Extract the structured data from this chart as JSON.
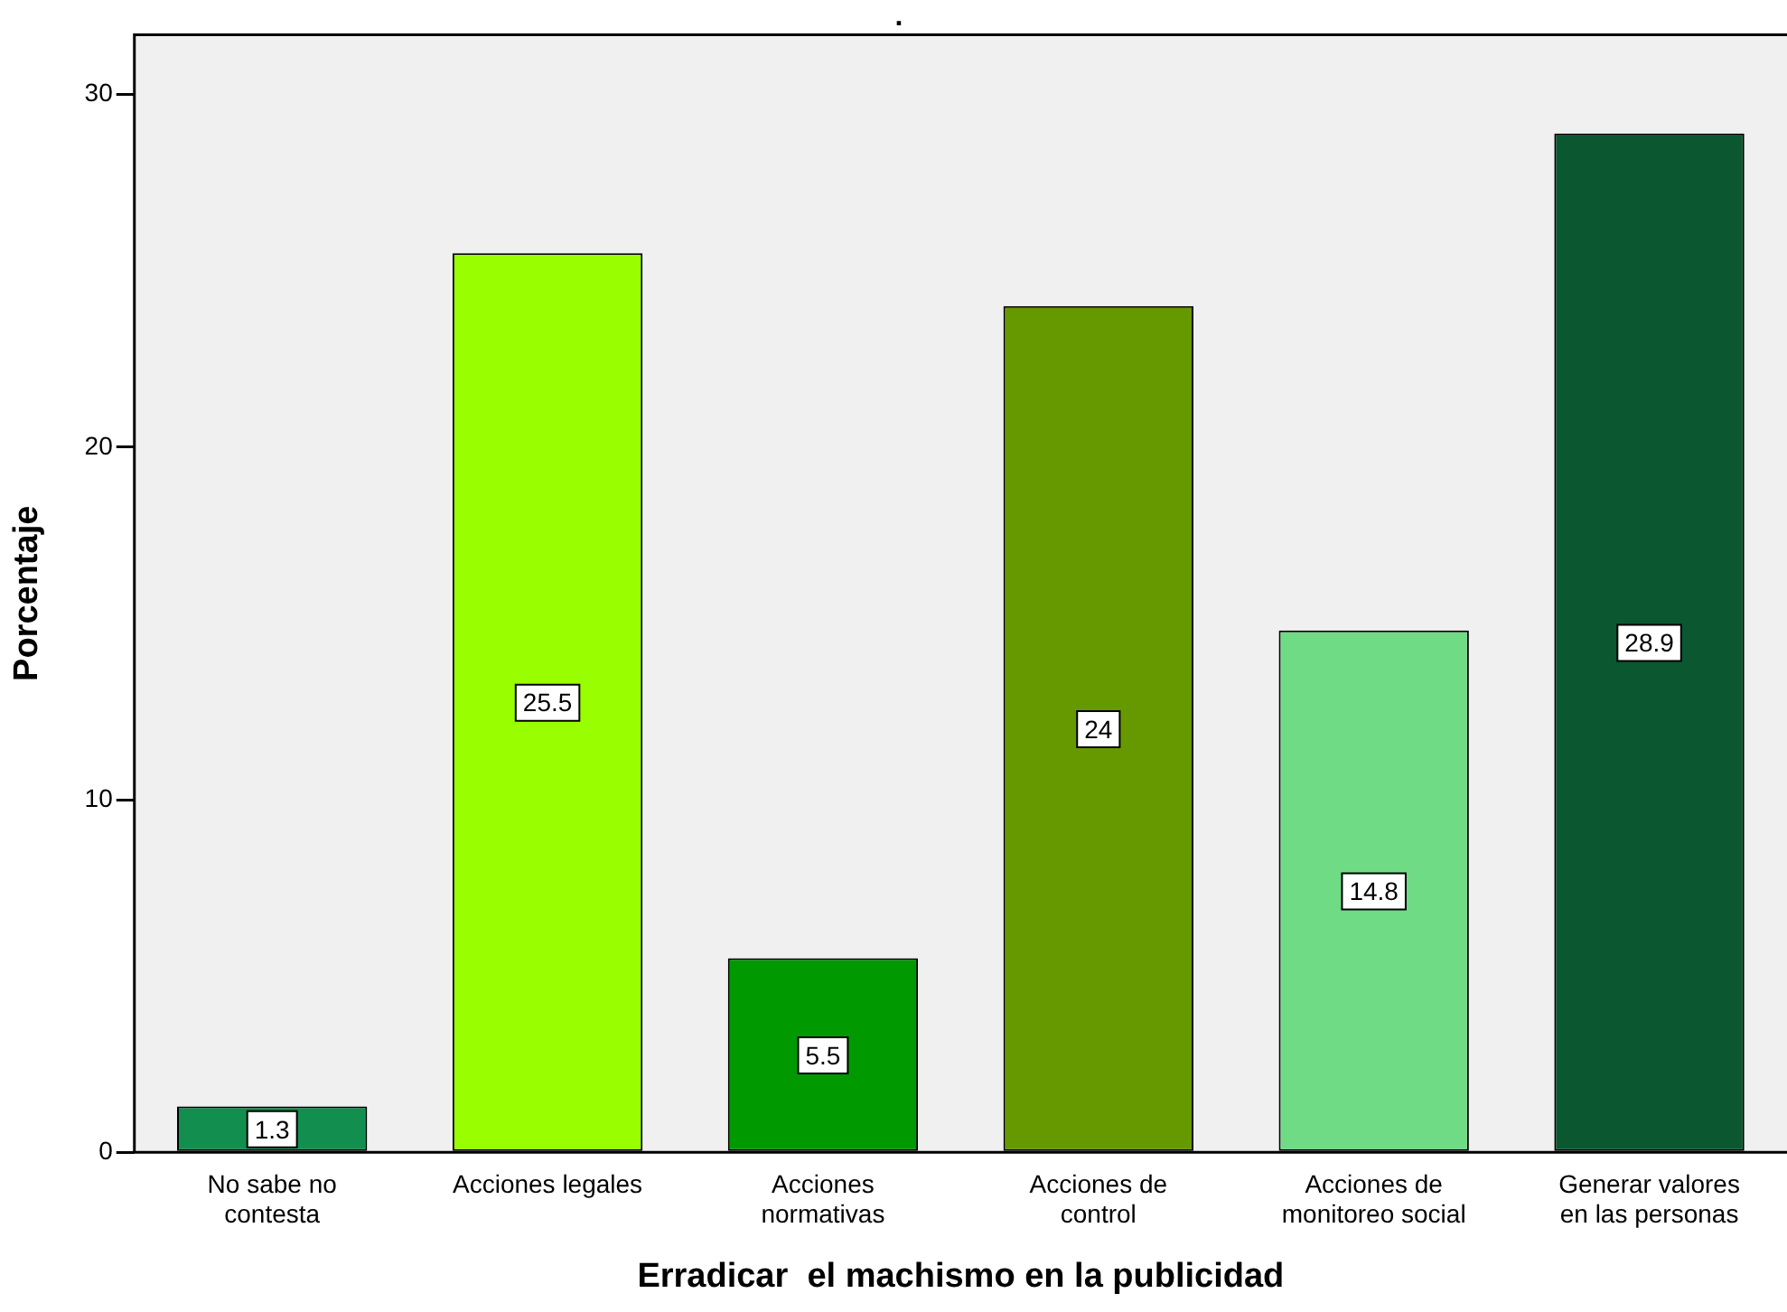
{
  "chart_data": {
    "type": "bar",
    "title": ".",
    "xlabel": "Erradicar  el machismo en la publicidad",
    "ylabel": "Porcentaje",
    "categories": [
      "No sabe no\ncontesta",
      "Acciones legales",
      "Acciones\nnormativas",
      "Acciones de\ncontrol",
      "Acciones de\nmonitoreo social",
      "Generar valores\nen las personas"
    ],
    "values": [
      1.3,
      25.5,
      5.5,
      24,
      14.8,
      28.9
    ],
    "colors": [
      "#128f4e",
      "#99ff00",
      "#009900",
      "#669900",
      "#70db85",
      "#0b5730"
    ],
    "ylim": [
      0,
      31.7
    ],
    "yticks": [
      0,
      10,
      20,
      30
    ],
    "grid": false,
    "legend": false,
    "data_labels": true
  }
}
